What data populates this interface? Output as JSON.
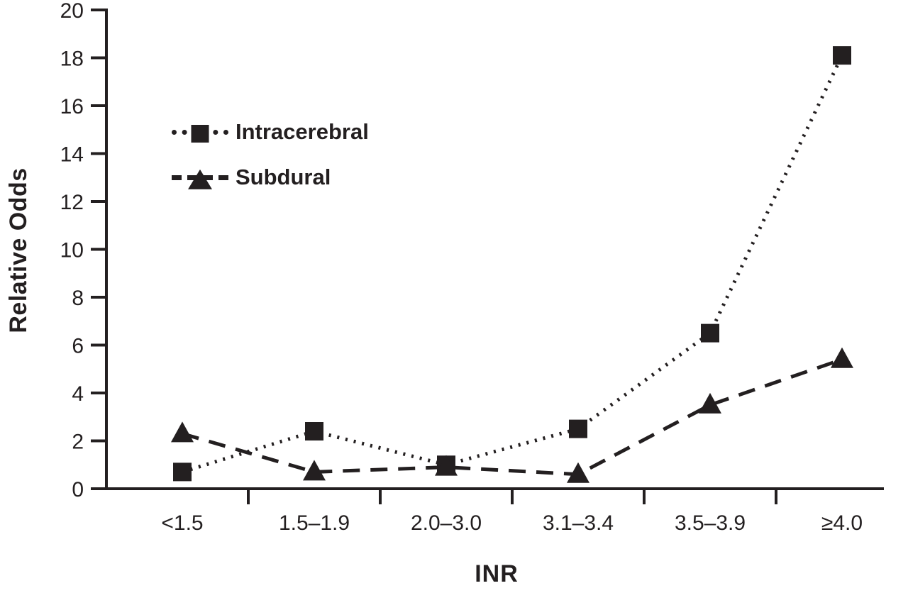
{
  "figure": {
    "background": "#ffffff",
    "ink_color": "#231f20"
  },
  "chart_data": {
    "type": "line",
    "title": "",
    "xlabel": "INR",
    "ylabel": "Relative Odds",
    "categories": [
      "<1.5",
      "1.5–1.9",
      "2.0–3.0",
      "3.1–3.4",
      "3.5–3.9",
      "≥4.0"
    ],
    "series": [
      {
        "name": "Intracerebral",
        "marker": "square",
        "line_style": "dotted",
        "values": [
          0.7,
          2.4,
          1.0,
          2.5,
          6.5,
          18.1
        ]
      },
      {
        "name": "Subdural",
        "marker": "triangle",
        "line_style": "dashed",
        "values": [
          2.3,
          0.7,
          0.9,
          0.6,
          3.5,
          5.4
        ]
      }
    ],
    "ylim": [
      0,
      20
    ],
    "ytick_step": 2,
    "grid": false,
    "legend_position": "upper-left-inside"
  }
}
